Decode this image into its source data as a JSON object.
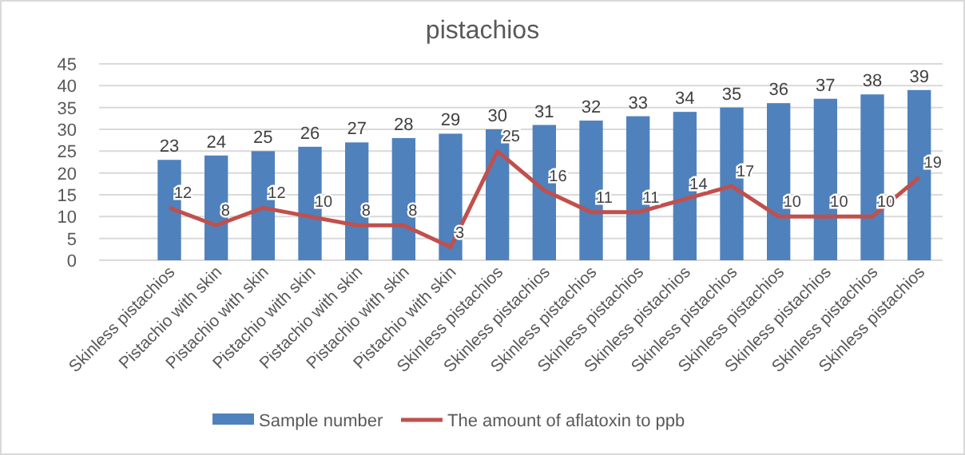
{
  "chart_data": {
    "type": "bar",
    "title": "pistachios",
    "categories": [
      "Skinless pistachios",
      "Pistachio with skin",
      "Pistachio with skin",
      "Pistachio with skin",
      "Pistachio with skin",
      "Pistachio with skin",
      "Pistachio with skin",
      "Skinless pistachios",
      "Skinless pistachios",
      "Skinless pistachios",
      "Skinless pistachios",
      "Skinless pistachios",
      "Skinless pistachios",
      "Skinless pistachios",
      "Skinless pistachios",
      "Skinless pistachios",
      "Skinless pistachios"
    ],
    "series": [
      {
        "name": "Sample number",
        "color": "#4f81bd",
        "values": [
          23,
          24,
          25,
          26,
          27,
          28,
          29,
          30,
          31,
          32,
          33,
          34,
          35,
          36,
          37,
          38,
          39
        ]
      },
      {
        "name": "The amount of aflatoxin to ppb",
        "type": "line",
        "color": "#c0504d",
        "values": [
          12,
          8,
          12,
          10,
          8,
          8,
          3,
          25,
          16,
          11,
          11,
          14,
          17,
          10,
          10,
          10,
          19
        ]
      }
    ],
    "ylim": [
      0,
      45
    ],
    "yticks": [
      0,
      5,
      10,
      15,
      20,
      25,
      30,
      35,
      40,
      45
    ],
    "grid": "y",
    "legend": "bottom",
    "data_labels": true,
    "marker": "none",
    "line_style": "solid"
  }
}
